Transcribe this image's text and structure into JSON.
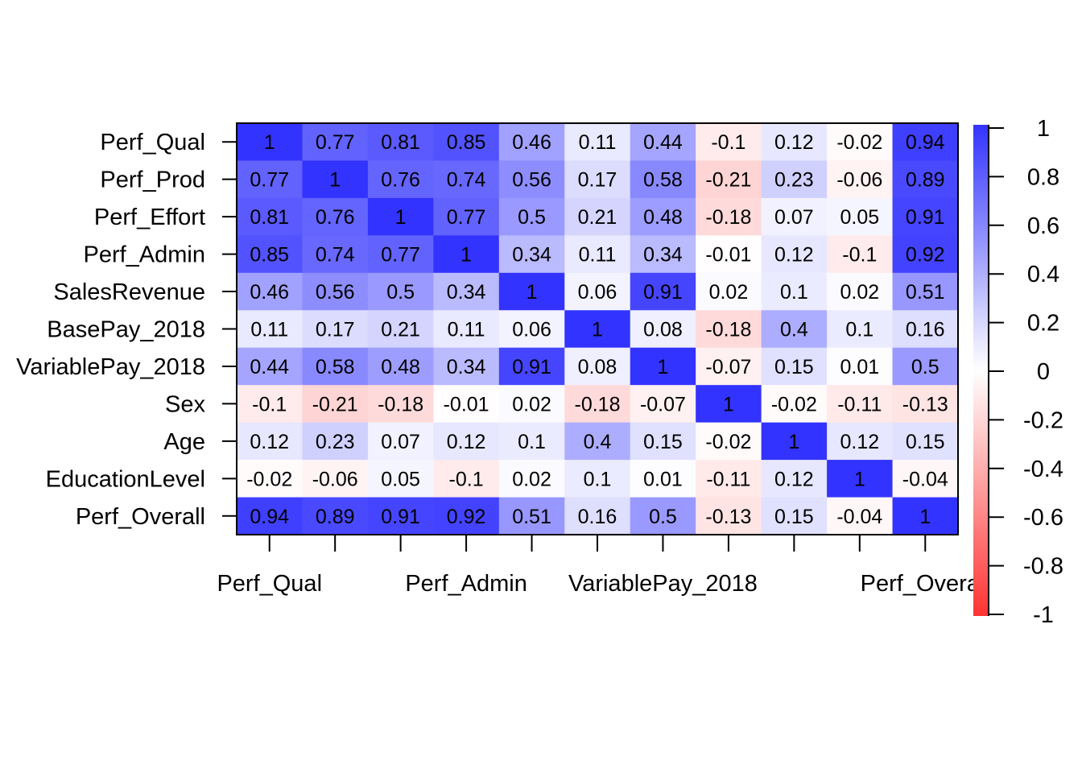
{
  "chart_data": {
    "type": "heatmap",
    "rows": [
      "Perf_Qual",
      "Perf_Prod",
      "Perf_Effort",
      "Perf_Admin",
      "SalesRevenue",
      "BasePay_2018",
      "VariablePay_2018",
      "Sex",
      "Age",
      "EducationLevel",
      "Perf_Overall"
    ],
    "columns": [
      "Perf_Qual",
      "Perf_Prod",
      "Perf_Effort",
      "Perf_Admin",
      "SalesRevenue",
      "BasePay_2018",
      "VariablePay_2018",
      "Sex",
      "Age",
      "EducationLevel",
      "Perf_Overall"
    ],
    "column_tick_labels_shown": [
      "Perf_Qual",
      "",
      "",
      "Perf_Admin",
      "",
      "",
      "VariablePay_2018",
      "",
      "",
      "",
      "Perf_Overall"
    ],
    "values": [
      [
        "1",
        "0.77",
        "0.81",
        "0.85",
        "0.46",
        "0.11",
        "0.44",
        "-0.1",
        "0.12",
        "-0.02",
        "0.94"
      ],
      [
        "0.77",
        "1",
        "0.76",
        "0.74",
        "0.56",
        "0.17",
        "0.58",
        "-0.21",
        "0.23",
        "-0.06",
        "0.89"
      ],
      [
        "0.81",
        "0.76",
        "1",
        "0.77",
        "0.5",
        "0.21",
        "0.48",
        "-0.18",
        "0.07",
        "0.05",
        "0.91"
      ],
      [
        "0.85",
        "0.74",
        "0.77",
        "1",
        "0.34",
        "0.11",
        "0.34",
        "-0.01",
        "0.12",
        "-0.1",
        "0.92"
      ],
      [
        "0.46",
        "0.56",
        "0.5",
        "0.34",
        "1",
        "0.06",
        "0.91",
        "0.02",
        "0.1",
        "0.02",
        "0.51"
      ],
      [
        "0.11",
        "0.17",
        "0.21",
        "0.11",
        "0.06",
        "1",
        "0.08",
        "-0.18",
        "0.4",
        "0.1",
        "0.16"
      ],
      [
        "0.44",
        "0.58",
        "0.48",
        "0.34",
        "0.91",
        "0.08",
        "1",
        "-0.07",
        "0.15",
        "0.01",
        "0.5"
      ],
      [
        "-0.1",
        "-0.21",
        "-0.18",
        "-0.01",
        "0.02",
        "-0.18",
        "-0.07",
        "1",
        "-0.02",
        "-0.11",
        "-0.13"
      ],
      [
        "0.12",
        "0.23",
        "0.07",
        "0.12",
        "0.1",
        "0.4",
        "0.15",
        "-0.02",
        "1",
        "0.12",
        "0.15"
      ],
      [
        "-0.02",
        "-0.06",
        "0.05",
        "-0.1",
        "0.02",
        "0.1",
        "0.01",
        "-0.11",
        "0.12",
        "1",
        "-0.04"
      ],
      [
        "0.94",
        "0.89",
        "0.91",
        "0.92",
        "0.51",
        "0.16",
        "0.5",
        "-0.13",
        "0.15",
        "-0.04",
        "1"
      ]
    ],
    "color_scale": {
      "min": -1,
      "max": 1,
      "colors": {
        "negative": "#ff3333",
        "zero": "#ffffff",
        "positive": "#3333ff"
      },
      "ticks": [
        "1",
        "0.8",
        "0.6",
        "0.4",
        "0.2",
        "0",
        "-0.2",
        "-0.4",
        "-0.6",
        "-0.8",
        "-1"
      ]
    },
    "grid": false,
    "legend": "right"
  }
}
